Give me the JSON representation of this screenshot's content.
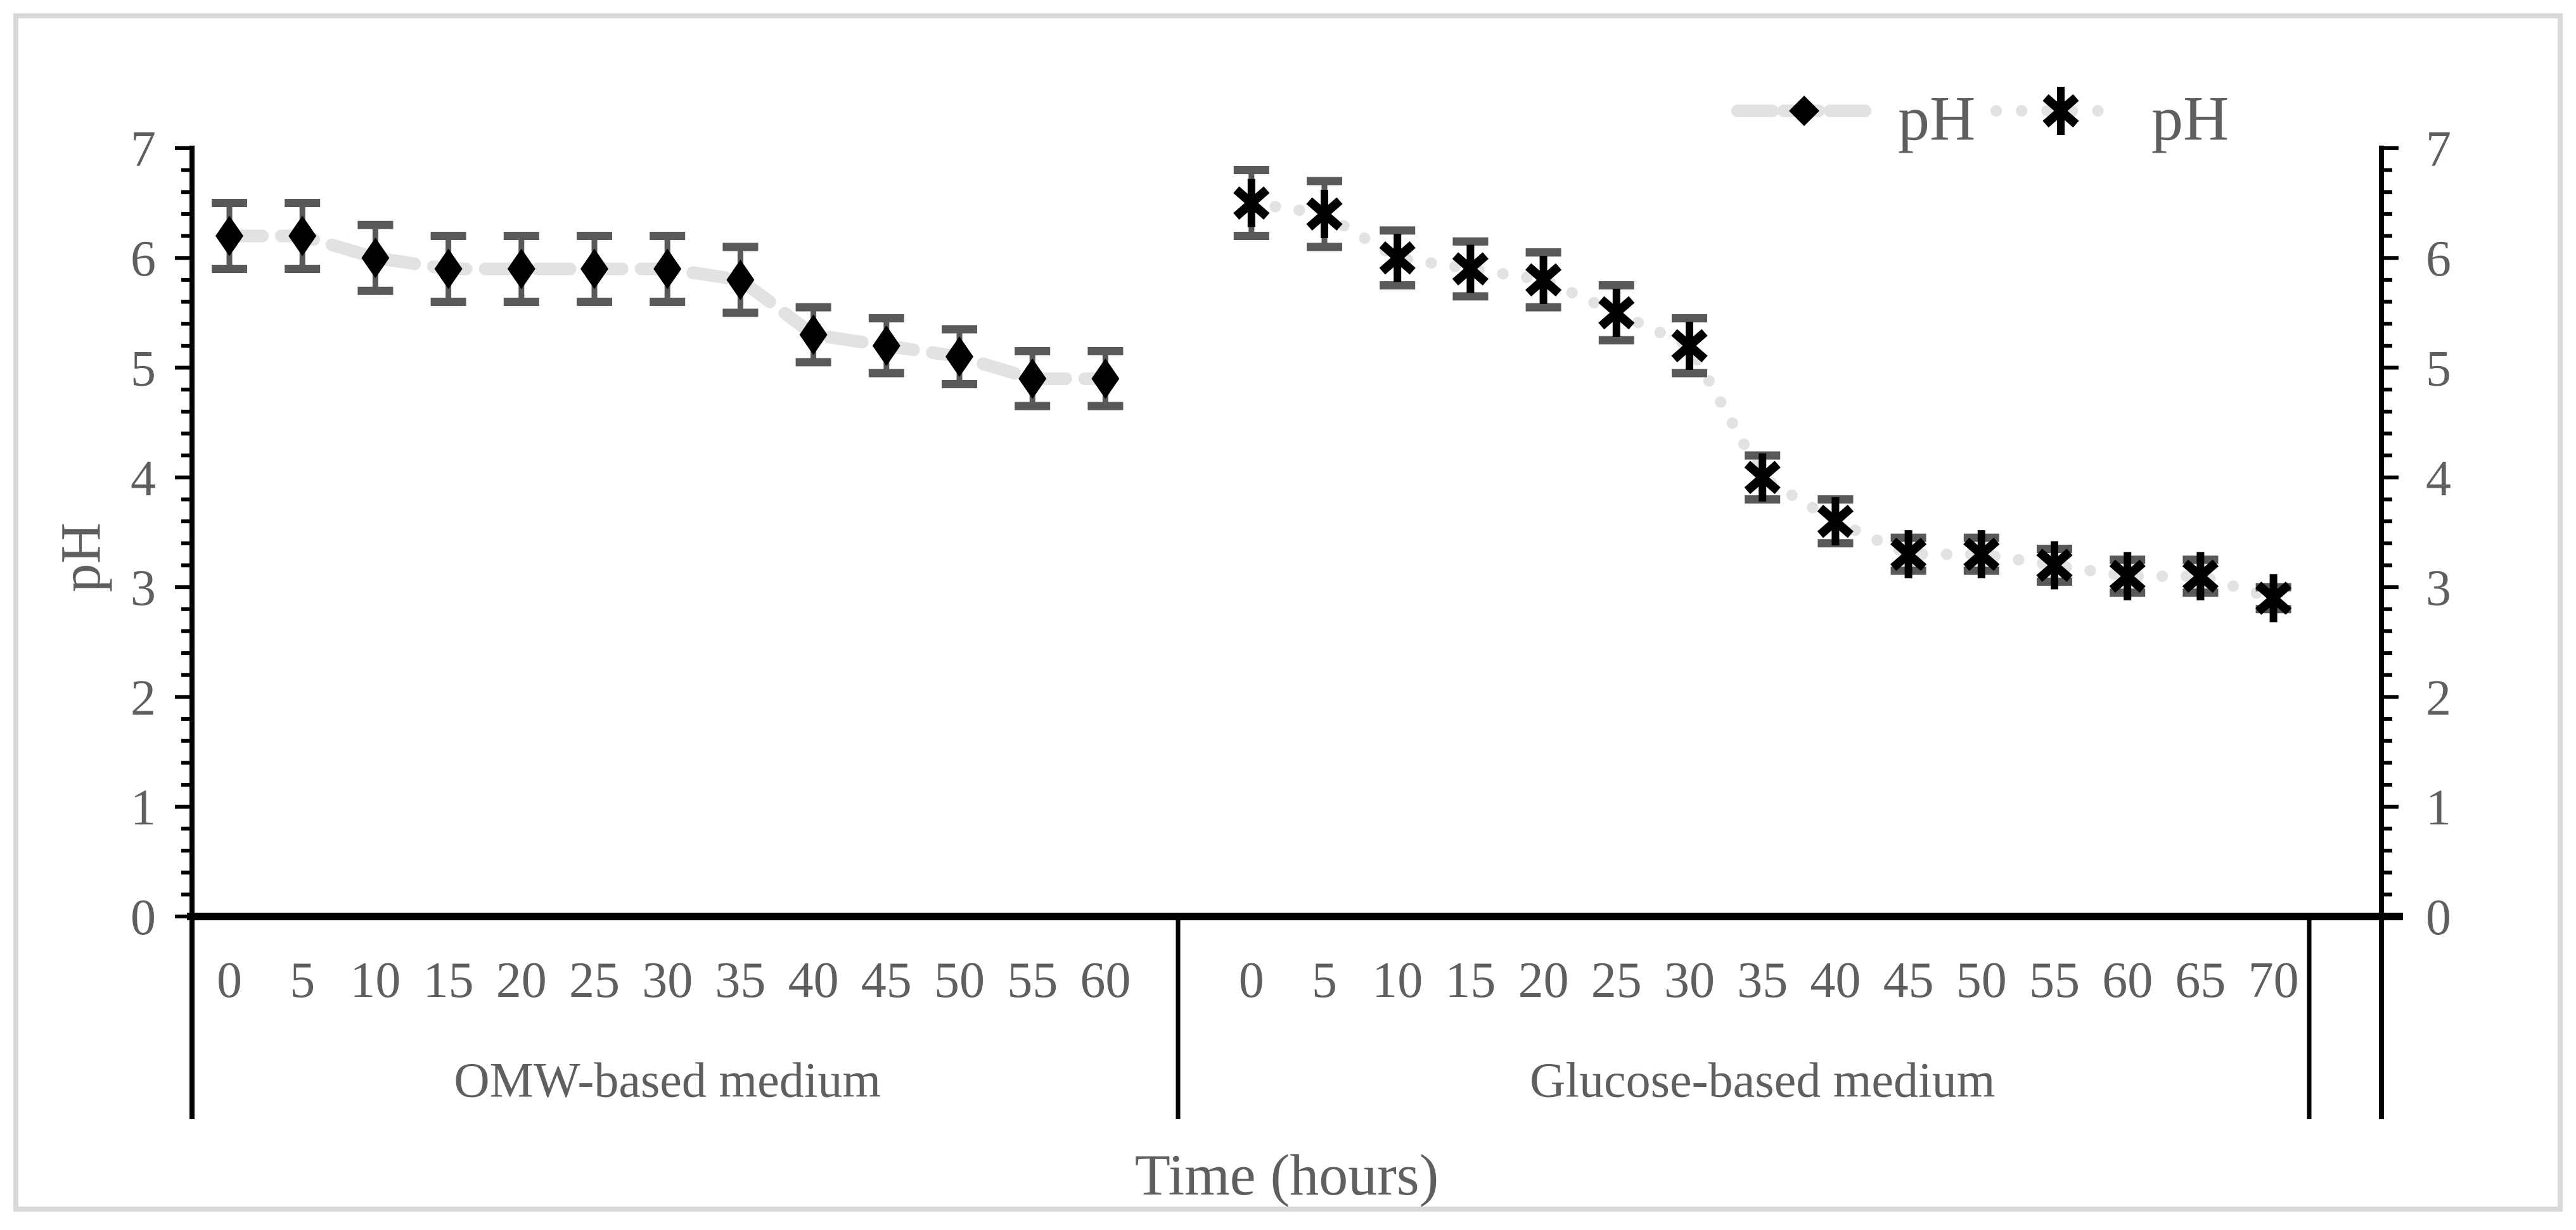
{
  "chart_data": {
    "type": "line",
    "title": "",
    "xlabel": "Time (hours)",
    "ylabel": "pH",
    "ylim": [
      0,
      7
    ],
    "ytick_step": 1,
    "yminor_step": 0.2,
    "ytick_labels": [
      "0",
      "1",
      "2",
      "3",
      "4",
      "5",
      "6",
      "7"
    ],
    "grid": false,
    "legend_position": "top-right",
    "legend": [
      {
        "label": "pH",
        "marker": "diamond",
        "line_style": "dashed"
      },
      {
        "label": "pH",
        "marker": "x-star",
        "line_style": "dotted"
      }
    ],
    "x_groups": [
      {
        "label": "OMW-based medium",
        "categories": [
          "0",
          "5",
          "10",
          "15",
          "20",
          "25",
          "30",
          "35",
          "40",
          "45",
          "50",
          "55",
          "60"
        ]
      },
      {
        "label": "Glucose-based medium",
        "categories": [
          "0",
          "5",
          "10",
          "15",
          "20",
          "25",
          "30",
          "35",
          "40",
          "45",
          "50",
          "55",
          "60",
          "65",
          "70"
        ]
      }
    ],
    "series": [
      {
        "name": "pH",
        "group": 0,
        "marker": "diamond",
        "line_style": "dashed",
        "x": [
          0,
          5,
          10,
          15,
          20,
          25,
          30,
          35,
          40,
          45,
          50,
          55,
          60
        ],
        "values": [
          6.2,
          6.2,
          6.0,
          5.9,
          5.9,
          5.9,
          5.9,
          5.8,
          5.3,
          5.2,
          5.1,
          4.9,
          4.9
        ],
        "errors": [
          0.3,
          0.3,
          0.3,
          0.3,
          0.3,
          0.3,
          0.3,
          0.3,
          0.25,
          0.25,
          0.25,
          0.25,
          0.25
        ]
      },
      {
        "name": "pH",
        "group": 1,
        "marker": "x-star",
        "line_style": "dotted",
        "x": [
          0,
          5,
          10,
          15,
          20,
          25,
          30,
          35,
          40,
          45,
          50,
          55,
          60,
          65,
          70
        ],
        "values": [
          6.5,
          6.4,
          6.0,
          5.9,
          5.8,
          5.5,
          5.2,
          4.0,
          3.6,
          3.3,
          3.3,
          3.2,
          3.1,
          3.1,
          2.9
        ],
        "errors": [
          0.3,
          0.3,
          0.25,
          0.25,
          0.25,
          0.25,
          0.25,
          0.2,
          0.2,
          0.15,
          0.15,
          0.15,
          0.15,
          0.15,
          0.1
        ]
      }
    ],
    "colors": {
      "marker": "#000000",
      "error_bar": "#595959",
      "series_line": "#e2e2e2",
      "axis": "#000000",
      "text": "#5f5f5f",
      "figure_border": "#d9d9d9",
      "background": "#ffffff"
    }
  }
}
